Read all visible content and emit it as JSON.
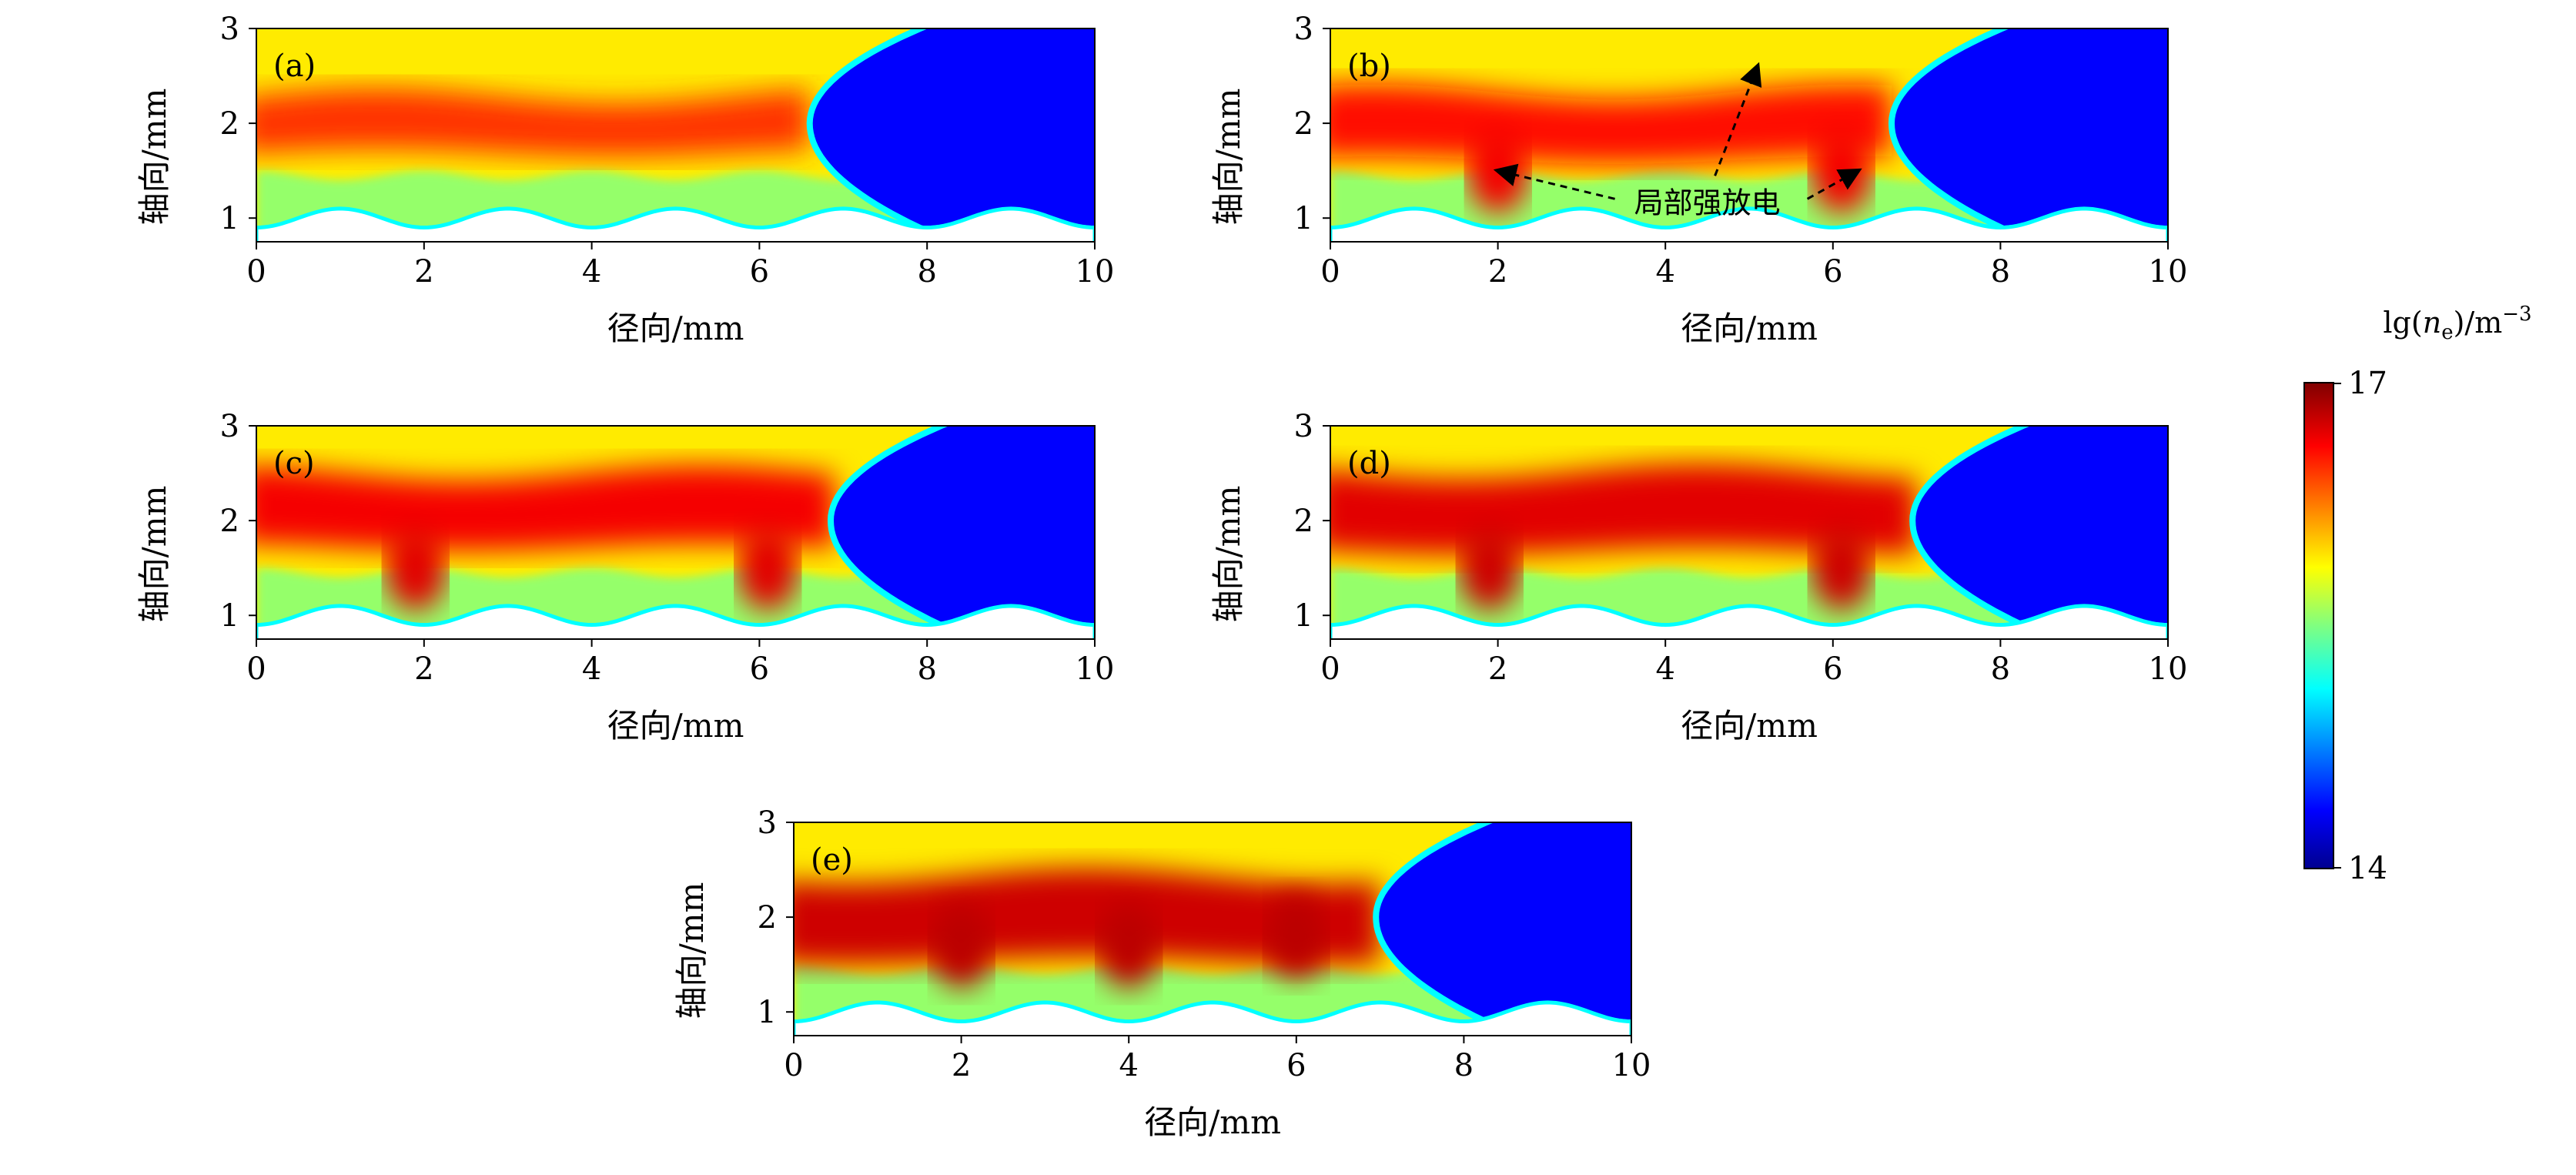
{
  "chart_data": [
    {
      "type": "heatmap",
      "panel": "(a)",
      "xlabel": "径向/mm",
      "ylabel": "轴向/mm",
      "xlim": [
        0,
        10
      ],
      "ylim": [
        0.75,
        3
      ],
      "xticks": [
        0,
        2,
        4,
        6,
        8,
        10
      ],
      "yticks": [
        1,
        2,
        3
      ],
      "front_x": 6.6,
      "core_level": 0.82,
      "core_y": 1.95,
      "hotspots": []
    },
    {
      "type": "heatmap",
      "panel": "(b)",
      "xlabel": "径向/mm",
      "ylabel": "轴向/mm",
      "xlim": [
        0,
        10
      ],
      "ylim": [
        0.75,
        3
      ],
      "xticks": [
        0,
        2,
        4,
        6,
        8,
        10
      ],
      "yticks": [
        1,
        2,
        3
      ],
      "front_x": 6.7,
      "core_level": 0.86,
      "core_y": 1.95,
      "hotspots": [
        [
          2,
          1.5
        ],
        [
          6.1,
          1.5
        ]
      ]
    },
    {
      "type": "heatmap",
      "panel": "(c)",
      "xlabel": "径向/mm",
      "ylabel": "轴向/mm",
      "xlim": [
        0,
        10
      ],
      "ylim": [
        0.75,
        3
      ],
      "xticks": [
        0,
        2,
        4,
        6,
        8,
        10
      ],
      "yticks": [
        1,
        2,
        3
      ],
      "front_x": 6.85,
      "core_level": 0.88,
      "core_y": 2.1,
      "hotspots": [
        [
          1.9,
          1.5
        ],
        [
          6.1,
          1.5
        ]
      ]
    },
    {
      "type": "heatmap",
      "panel": "(d)",
      "xlabel": "径向/mm",
      "ylabel": "轴向/mm",
      "xlim": [
        0,
        10
      ],
      "ylim": [
        0.75,
        3
      ],
      "xticks": [
        0,
        2,
        4,
        6,
        8,
        10
      ],
      "yticks": [
        1,
        2,
        3
      ],
      "front_x": 6.95,
      "core_level": 0.9,
      "core_y": 2.1,
      "hotspots": [
        [
          1.9,
          1.5
        ],
        [
          6.1,
          1.5
        ]
      ]
    },
    {
      "type": "heatmap",
      "panel": "(e)",
      "xlabel": "径向/mm",
      "ylabel": "轴向/mm",
      "xlim": [
        0,
        10
      ],
      "ylim": [
        0.75,
        3
      ],
      "xticks": [
        0,
        2,
        4,
        6,
        8,
        10
      ],
      "yticks": [
        1,
        2,
        3
      ],
      "front_x": 6.95,
      "core_level": 0.92,
      "core_y": 2.0,
      "hotspots": [
        [
          2,
          1.7
        ],
        [
          4,
          1.7
        ],
        [
          6,
          1.8
        ]
      ]
    }
  ],
  "annotation": {
    "label": "局部强放电",
    "panel": "(b)",
    "targets": [
      [
        2,
        1.5
      ],
      [
        5.1,
        2.6
      ],
      [
        6.3,
        1.5
      ]
    ]
  },
  "colorbar": {
    "label_prefix": "lg(",
    "label_var": "n",
    "label_sub": "e",
    "label_suffix": ")/m",
    "label_exp": "−3",
    "min": 14,
    "max": 17,
    "min_label": "14",
    "max_label": "17",
    "colormap": "jet"
  }
}
